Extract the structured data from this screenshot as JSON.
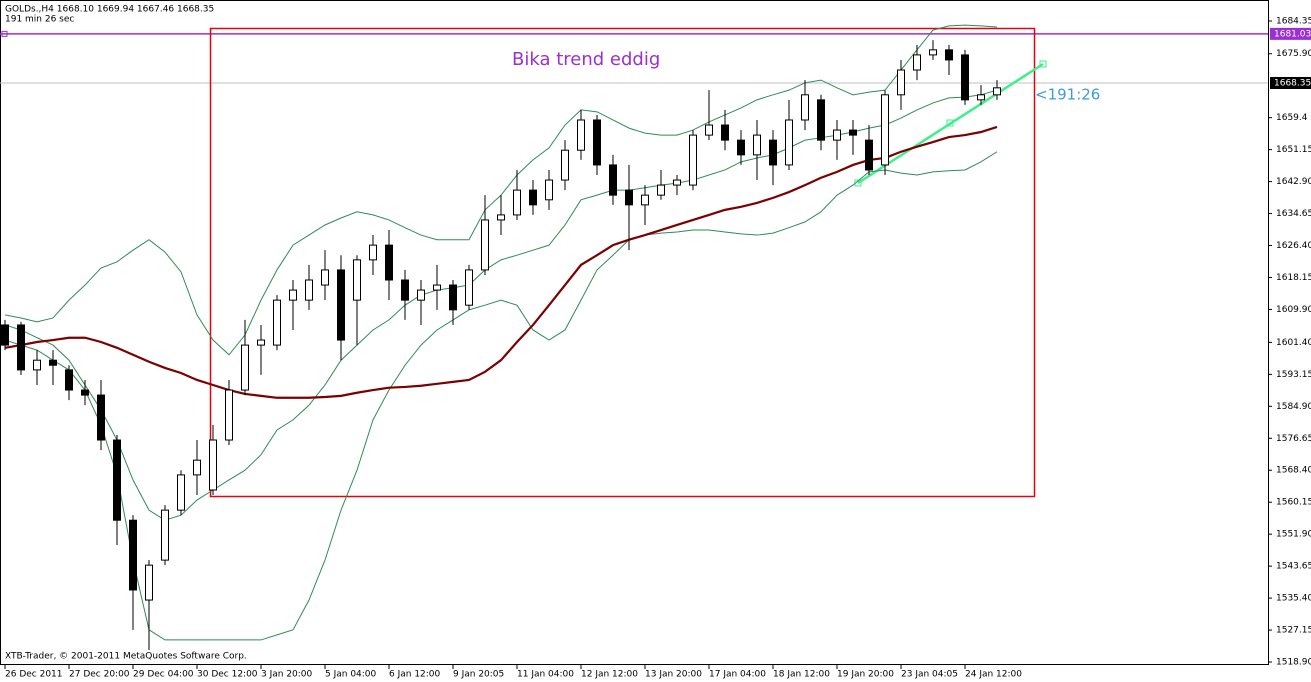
{
  "chart_data": {
    "type": "candlestick",
    "header": "GOLDs.,H4  1668.10 1669.94 1667.46 1668.35",
    "timer": "191 min 26 sec",
    "footer": "XTB-Trader, © 2001-2011 MetaQuotes Software Corp.",
    "annotation": "Bika trend eddig",
    "trend_label": "<191:26",
    "categories": [
      "26 Dec 2011",
      null,
      null,
      null,
      "27 Dec 20:00",
      null,
      null,
      null,
      "29 Dec 04:00",
      null,
      null,
      null,
      "30 Dec 12:00",
      null,
      null,
      null,
      "3 Jan 20:00",
      null,
      null,
      null,
      "5 Jan 04:00",
      null,
      null,
      null,
      "6 Jan 12:00",
      null,
      null,
      null,
      "9 Jan 20:05",
      null,
      null,
      null,
      "11 Jan 04:00",
      null,
      null,
      null,
      "12 Jan 12:00",
      null,
      null,
      null,
      "13 Jan 20:00",
      null,
      null,
      null,
      "17 Jan 04:00",
      null,
      null,
      null,
      "18 Jan 12:00",
      null,
      null,
      null,
      "19 Jan 20:00",
      null,
      null,
      null,
      "23 Jan 04:05",
      null,
      null,
      null,
      "24 Jan 12:00",
      null,
      null
    ],
    "open": [
      1605.9,
      1605.9,
      1594.3,
      1596.8,
      1594.3,
      1589.1,
      1587.8,
      1576.2,
      1555.5,
      1534.9,
      1545.2,
      1558.1,
      1567.2,
      1563.3,
      1576.2,
      1589.1,
      1600.7,
      1600.7,
      1612.3,
      1612.3,
      1616.2,
      1620.1,
      1612.3,
      1622.7,
      1626.5,
      1617.5,
      1612.3,
      1614.9,
      1616.2,
      1611.0,
      1620.1,
      1633.0,
      1634.3,
      1640.7,
      1638.2,
      1643.3,
      1651.0,
      1658.8,
      1647.2,
      1640.7,
      1636.9,
      1639.4,
      1642.0,
      1642.0,
      1654.9,
      1657.5,
      1653.6,
      1649.8,
      1653.6,
      1647.2,
      1658.8,
      1664.0,
      1653.6,
      1656.2,
      1653.6,
      1647.2,
      1665.3,
      1671.7,
      1675.6,
      1676.9,
      1675.6,
      1664.0,
      1665.3
    ],
    "high": [
      1607.2,
      1606.7,
      1599.4,
      1599.4,
      1595.5,
      1591.7,
      1591.7,
      1577.5,
      1556.8,
      1545.2,
      1559.4,
      1568.4,
      1576.2,
      1580.1,
      1591.7,
      1607.2,
      1605.9,
      1613.6,
      1617.5,
      1621.4,
      1625.2,
      1623.9,
      1623.9,
      1629.1,
      1630.4,
      1620.1,
      1617.5,
      1621.4,
      1617.5,
      1621.4,
      1639.4,
      1639.4,
      1645.9,
      1643.3,
      1645.9,
      1653.6,
      1661.4,
      1660.1,
      1649.8,
      1647.2,
      1642.0,
      1645.9,
      1644.6,
      1656.2,
      1666.5,
      1661.4,
      1656.2,
      1658.8,
      1656.2,
      1664.0,
      1669.1,
      1665.3,
      1658.8,
      1658.8,
      1657.5,
      1666.5,
      1674.3,
      1678.2,
      1679.4,
      1678.2,
      1676.9,
      1667.8,
      1669.1
    ],
    "low": [
      1599.4,
      1593.0,
      1590.4,
      1590.4,
      1586.5,
      1585.2,
      1573.6,
      1549.1,
      1527.2,
      1522.0,
      1543.9,
      1556.8,
      1562.0,
      1562.0,
      1574.9,
      1587.8,
      1593.0,
      1599.4,
      1604.6,
      1609.8,
      1612.3,
      1596.8,
      1600.7,
      1618.8,
      1612.3,
      1607.2,
      1605.9,
      1609.8,
      1605.9,
      1609.8,
      1618.8,
      1629.1,
      1633.0,
      1634.3,
      1635.6,
      1640.7,
      1648.5,
      1644.6,
      1636.9,
      1625.2,
      1631.7,
      1638.2,
      1639.4,
      1640.7,
      1653.6,
      1651.0,
      1647.2,
      1643.3,
      1642.0,
      1645.9,
      1656.2,
      1651.0,
      1648.5,
      1649.8,
      1644.6,
      1644.6,
      1661.4,
      1669.1,
      1674.3,
      1670.4,
      1662.7,
      1662.7,
      1664.0
    ],
    "close": [
      1600.7,
      1594.3,
      1596.8,
      1595.5,
      1589.1,
      1587.8,
      1576.2,
      1555.5,
      1537.5,
      1543.9,
      1558.1,
      1567.2,
      1571.0,
      1576.2,
      1589.1,
      1600.7,
      1602.0,
      1612.3,
      1614.9,
      1617.5,
      1620.1,
      1602.0,
      1622.7,
      1626.5,
      1617.5,
      1612.3,
      1614.9,
      1616.2,
      1609.8,
      1620.1,
      1633.0,
      1634.3,
      1640.7,
      1636.9,
      1643.3,
      1651.0,
      1658.8,
      1647.2,
      1639.4,
      1636.9,
      1639.4,
      1642.0,
      1643.3,
      1654.9,
      1657.5,
      1653.6,
      1649.8,
      1654.9,
      1647.2,
      1658.8,
      1665.3,
      1653.6,
      1656.2,
      1654.9,
      1645.9,
      1665.3,
      1671.7,
      1675.6,
      1676.9,
      1674.3,
      1664.0,
      1665.3,
      1667.1
    ],
    "bull_color": "#ffffff",
    "bear_color": "#000000",
    "overlays": [
      {
        "color": "#2e8b57",
        "values": [
          1608.5,
          1607.7,
          1606.7,
          1607.7,
          1612.3,
          1616.2,
          1620.6,
          1622.2,
          1625.2,
          1627.9,
          1624.7,
          1619.6,
          1608.5,
          1602.0,
          1598.2,
          1603.3,
          1612.3,
          1620.1,
          1626.5,
          1629.1,
          1631.7,
          1633.5,
          1635.1,
          1634.3,
          1633.0,
          1631.0,
          1629.1,
          1627.9,
          1627.9,
          1627.9,
          1635.6,
          1639.4,
          1644.6,
          1648.5,
          1651.6,
          1657.5,
          1661.4,
          1660.9,
          1658.8,
          1656.7,
          1655.4,
          1654.9,
          1654.9,
          1656.2,
          1658.3,
          1660.1,
          1661.9,
          1664.0,
          1665.3,
          1666.5,
          1668.4,
          1669.1,
          1667.1,
          1665.3,
          1666.0,
          1666.5,
          1671.7,
          1676.9,
          1682.0,
          1683.1,
          1683.3,
          1683.1,
          1682.8
        ]
      },
      {
        "color": "#2e8b57",
        "values": [
          1605.9,
          1604.6,
          1602.6,
          1600.7,
          1596.8,
          1590.4,
          1584.0,
          1576.2,
          1565.9,
          1558.1,
          1555.5,
          1556.8,
          1560.7,
          1563.3,
          1565.9,
          1568.4,
          1572.4,
          1578.8,
          1581.4,
          1585.2,
          1590.4,
          1596.8,
          1600.7,
          1604.6,
          1607.2,
          1611.0,
          1613.6,
          1614.9,
          1615.5,
          1616.2,
          1620.1,
          1622.7,
          1623.9,
          1625.2,
          1626.5,
          1631.7,
          1638.2,
          1639.4,
          1640.7,
          1640.7,
          1641.3,
          1642.0,
          1642.5,
          1643.3,
          1644.6,
          1645.9,
          1648.0,
          1649.0,
          1649.8,
          1651.6,
          1653.6,
          1654.2,
          1654.9,
          1655.7,
          1656.7,
          1657.5,
          1659.3,
          1661.4,
          1663.2,
          1664.5,
          1664.7,
          1665.3,
          1666.5
        ]
      },
      {
        "color": "#2e8b57",
        "values": [
          1602.0,
          1600.7,
          1599.4,
          1596.8,
          1594.3,
          1589.1,
          1580.1,
          1567.2,
          1545.2,
          1527.2,
          1524.6,
          1524.6,
          1524.6,
          1524.6,
          1524.6,
          1524.6,
          1524.6,
          1525.9,
          1527.2,
          1534.9,
          1545.2,
          1558.1,
          1568.4,
          1581.4,
          1589.1,
          1595.5,
          1600.7,
          1604.6,
          1607.2,
          1609.8,
          1611.0,
          1612.3,
          1611.0,
          1604.6,
          1602.0,
          1604.6,
          1612.3,
          1620.1,
          1623.9,
          1627.9,
          1629.1,
          1629.6,
          1629.9,
          1630.4,
          1630.4,
          1629.9,
          1629.4,
          1629.1,
          1629.6,
          1631.0,
          1632.5,
          1635.1,
          1639.4,
          1642.0,
          1645.4,
          1645.9,
          1645.1,
          1644.6,
          1645.4,
          1645.7,
          1645.9,
          1648.0,
          1650.6
        ]
      },
      {
        "color": "#7b0000",
        "values": [
          1600.0,
          1600.7,
          1601.5,
          1602.0,
          1602.6,
          1602.6,
          1601.5,
          1600.0,
          1598.2,
          1596.4,
          1594.8,
          1593.5,
          1591.7,
          1590.4,
          1589.1,
          1588.1,
          1587.6,
          1587.1,
          1587.1,
          1587.1,
          1587.3,
          1587.6,
          1588.4,
          1589.1,
          1589.7,
          1589.9,
          1590.2,
          1590.7,
          1591.2,
          1591.7,
          1593.8,
          1596.8,
          1601.5,
          1605.9,
          1611.0,
          1616.2,
          1621.4,
          1623.9,
          1626.5,
          1627.9,
          1629.1,
          1630.4,
          1631.7,
          1633.0,
          1634.3,
          1635.6,
          1636.4,
          1637.4,
          1638.7,
          1640.2,
          1642.0,
          1643.9,
          1645.4,
          1647.2,
          1648.5,
          1649.0,
          1650.6,
          1651.9,
          1653.1,
          1654.4,
          1654.9,
          1655.7,
          1657.0
        ]
      }
    ],
    "level_line": 1681.03,
    "level_color": "#9b30d0",
    "price_line": 1668.35,
    "ylim": [
      1518.13,
      1689.77
    ],
    "yticks": [
      1684.35,
      {
        "value": 1675.9,
        "label": "1675.90"
      },
      1659.4,
      {
        "value": 1651.15,
        "label": "1651.15"
      },
      {
        "value": 1642.9,
        "label": "1642.90"
      },
      1634.65,
      {
        "value": 1626.4,
        "label": "1626.40"
      },
      1618.15,
      {
        "value": 1609.9,
        "label": "1609.90"
      },
      {
        "value": 1601.4,
        "label": "1601.40"
      },
      1593.15,
      {
        "value": 1584.9,
        "label": "1584.90"
      },
      1576.65,
      {
        "value": 1568.4,
        "label": "1568.40"
      },
      1560.15,
      {
        "value": 1551.9,
        "label": "1551.90"
      },
      1543.65,
      {
        "value": 1535.4,
        "label": "1535.40"
      },
      1527.15,
      {
        "value": 1518.9,
        "label": "1518.90"
      }
    ]
  }
}
